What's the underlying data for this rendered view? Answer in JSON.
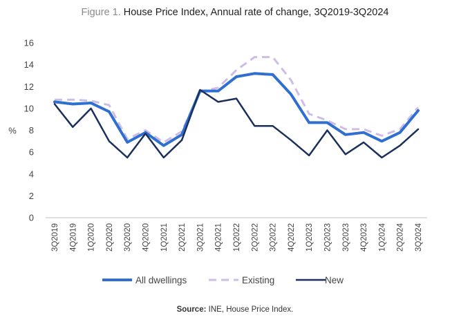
{
  "title": {
    "prefix": "Figure 1.",
    "text": "House Price Index, Annual rate of change, 3Q2019-3Q2024"
  },
  "source": {
    "label": "Source:",
    "text": "INE, House Price Index."
  },
  "chart_data": {
    "type": "line",
    "title": "Figure 1. House Price Index, Annual rate of change, 3Q2019-3Q2024",
    "xlabel": "",
    "ylabel": "%",
    "ylim": [
      0,
      16
    ],
    "yticks": [
      0,
      2,
      4,
      6,
      8,
      10,
      12,
      14,
      16
    ],
    "grid": false,
    "legend_position": "bottom",
    "categories": [
      "3Q2019",
      "4Q2019",
      "1Q2020",
      "2Q2020",
      "3Q2020",
      "4Q2020",
      "1Q2021",
      "2Q2021",
      "3Q2021",
      "4Q2021",
      "1Q2022",
      "2Q2022",
      "3Q2022",
      "4Q2022",
      "1Q2023",
      "2Q2023",
      "3Q2023",
      "4Q2023",
      "1Q2024",
      "2Q2024",
      "3Q2024"
    ],
    "series": [
      {
        "name": "All dwellings",
        "color": "#2e6fd0",
        "style": "solid-thick",
        "values": [
          10.6,
          10.4,
          10.5,
          9.7,
          6.9,
          7.8,
          6.6,
          7.6,
          11.6,
          11.6,
          12.9,
          13.2,
          13.1,
          11.3,
          8.7,
          8.7,
          7.6,
          7.8,
          7.0,
          7.8,
          9.8
        ]
      },
      {
        "name": "Existing",
        "color": "#cdbde6",
        "style": "dashed",
        "values": [
          10.8,
          10.8,
          10.7,
          10.3,
          7.2,
          8.0,
          6.9,
          7.9,
          11.5,
          11.9,
          13.5,
          14.7,
          14.7,
          12.6,
          9.5,
          8.9,
          8.1,
          8.1,
          7.5,
          8.1,
          10.1
        ]
      },
      {
        "name": "New",
        "color": "#1a2f5c",
        "style": "solid",
        "values": [
          10.4,
          8.3,
          10.0,
          7.0,
          5.5,
          7.7,
          5.5,
          7.1,
          11.7,
          10.6,
          10.9,
          8.4,
          8.4,
          7.1,
          5.7,
          8.0,
          5.8,
          6.9,
          5.5,
          6.6,
          8.1
        ]
      }
    ]
  }
}
